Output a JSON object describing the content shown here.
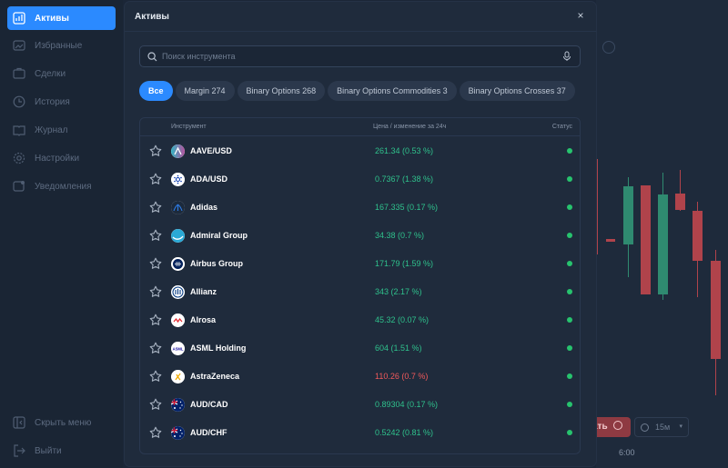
{
  "sidebar": {
    "items": [
      {
        "label": "Активы",
        "icon": "chart-icon",
        "active": true
      },
      {
        "label": "Избранные",
        "icon": "favorites-icon"
      },
      {
        "label": "Сделки",
        "icon": "deals-icon"
      },
      {
        "label": "История",
        "icon": "clock-icon"
      },
      {
        "label": "Журнал",
        "icon": "book-icon"
      },
      {
        "label": "Настройки",
        "icon": "gear-icon"
      },
      {
        "label": "Уведомления",
        "icon": "bell-icon"
      }
    ],
    "collapse_label": "Скрыть меню",
    "logout_label": "Выйти"
  },
  "chart_bg": {
    "buy_label": "ать",
    "timeframe": "15м",
    "time_label": "6:00"
  },
  "modal": {
    "title": "Активы",
    "close": "×",
    "search_placeholder": "Поиск инструмента",
    "filters": [
      {
        "label": "Все",
        "active": true
      },
      {
        "label": "Margin 274"
      },
      {
        "label": "Binary Options 268"
      },
      {
        "label": "Binary Options Commodities 3"
      },
      {
        "label": "Binary Options Crosses 37"
      }
    ],
    "columns": {
      "instrument": "Инструмент",
      "price": "Цена / изменение за 24ч",
      "status": "Статус"
    },
    "rows": [
      {
        "name": "AAVE/USD",
        "price": "261.34 (0.53 %)",
        "trend": "up",
        "logo": "aave-logo"
      },
      {
        "name": "ADA/USD",
        "price": "0.7367 (1.38 %)",
        "trend": "up",
        "logo": "cardano-logo"
      },
      {
        "name": "Adidas",
        "price": "167.335 (0.17 %)",
        "trend": "up",
        "logo": "adidas-logo"
      },
      {
        "name": "Admiral Group",
        "price": "34.38 (0.7 %)",
        "trend": "up",
        "logo": "admiral-logo"
      },
      {
        "name": "Airbus Group",
        "price": "171.79 (1.59 %)",
        "trend": "up",
        "logo": "airbus-logo"
      },
      {
        "name": "Allianz",
        "price": "343 (2.17 %)",
        "trend": "up",
        "logo": "allianz-logo"
      },
      {
        "name": "Alrosa",
        "price": "45.32 (0.07 %)",
        "trend": "up",
        "logo": "alrosa-logo"
      },
      {
        "name": "ASML Holding",
        "price": "604 (1.51 %)",
        "trend": "up",
        "logo": "asml-logo"
      },
      {
        "name": "AstraZeneca",
        "price": "110.26 (0.7 %)",
        "trend": "down",
        "logo": "astrazeneca-logo"
      },
      {
        "name": "AUD/CAD",
        "price": "0.89304 (0.17 %)",
        "trend": "up",
        "logo": "australia-flag"
      },
      {
        "name": "AUD/CHF",
        "price": "0.5242 (0.81 %)",
        "trend": "up",
        "logo": "australia-flag"
      }
    ]
  },
  "colors": {
    "accent": "#2b8aff",
    "up": "#2fc18c",
    "down": "#f0595b",
    "status_online": "#27c36e"
  }
}
